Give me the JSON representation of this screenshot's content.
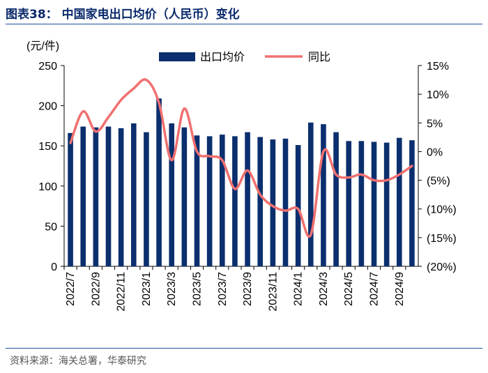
{
  "figure": {
    "title": "图表38：  中国家电出口均价（人民币）变化",
    "source": "资料来源：海关总署，华泰研究"
  },
  "chart_data": {
    "type": "bar+line",
    "left_unit": "(元/件)",
    "categories": [
      "2022/7",
      "2022/8",
      "2022/9",
      "2022/10",
      "2022/11",
      "2022/12",
      "2023/1",
      "2023/2",
      "2023/3",
      "2023/4",
      "2023/5",
      "2023/6",
      "2023/7",
      "2023/8",
      "2023/9",
      "2023/10",
      "2023/11",
      "2023/12",
      "2024/1",
      "2024/2",
      "2024/3",
      "2024/4",
      "2024/5",
      "2024/6",
      "2024/7",
      "2024/8",
      "2024/9",
      "2024/10"
    ],
    "xtick_labels": [
      "2022/7",
      "2022/9",
      "2022/11",
      "2023/1",
      "2023/3",
      "2023/5",
      "2023/7",
      "2023/9",
      "2023/11",
      "2024/1",
      "2024/3",
      "2024/5",
      "2024/7",
      "2024/9"
    ],
    "yticks_left": [
      "0",
      "50",
      "100",
      "150",
      "200",
      "250"
    ],
    "yticks_right": [
      "(20%)",
      "(15%)",
      "(10%)",
      "(5%)",
      "0%",
      "5%",
      "10%",
      "15%"
    ],
    "ylim_left": [
      0,
      250
    ],
    "ylim_right": [
      -20,
      15
    ],
    "legend_position": "top",
    "series": [
      {
        "name": "出口均价",
        "type": "bar",
        "axis": "left",
        "color": "#0b2f6e",
        "values": [
          166,
          174,
          173,
          174,
          172,
          178,
          167,
          209,
          178,
          173,
          163,
          162,
          164,
          162,
          167,
          161,
          158,
          159,
          151,
          179,
          177,
          167,
          156,
          156,
          155,
          154,
          160,
          157
        ]
      },
      {
        "name": "同比",
        "type": "line",
        "axis": "right",
        "color": "#f07070",
        "values": [
          1.5,
          7,
          3.5,
          6,
          9,
          11,
          12.5,
          8.5,
          -1.5,
          7.5,
          0,
          -0.8,
          -1.5,
          -6.5,
          -3.3,
          -7.5,
          -9.5,
          -10.3,
          -10,
          -14.5,
          0,
          -4,
          -4.5,
          -4,
          -5,
          -5,
          -4,
          -2.5
        ]
      }
    ]
  }
}
